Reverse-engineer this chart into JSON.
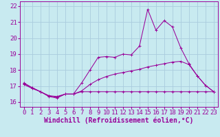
{
  "xlabel": "Windchill (Refroidissement éolien,°C)",
  "bg_color": "#c8eaf0",
  "line_color": "#990099",
  "grid_color": "#aaccdd",
  "xlim": [
    -0.5,
    23.5
  ],
  "ylim": [
    15.7,
    22.3
  ],
  "yticks": [
    16,
    17,
    18,
    19,
    20,
    21,
    22
  ],
  "xticks": [
    0,
    1,
    2,
    3,
    4,
    5,
    6,
    7,
    8,
    9,
    10,
    11,
    12,
    13,
    14,
    15,
    16,
    17,
    18,
    19,
    20,
    21,
    22,
    23
  ],
  "line1_x": [
    0,
    1,
    2,
    3,
    4,
    5,
    6,
    7,
    8,
    9,
    10,
    11,
    12,
    13,
    14,
    15,
    16,
    17,
    18,
    19,
    20,
    21,
    22,
    23
  ],
  "line1_y": [
    17.1,
    16.85,
    16.65,
    16.35,
    16.25,
    16.5,
    16.5,
    16.65,
    16.65,
    16.65,
    16.65,
    16.65,
    16.65,
    16.65,
    16.65,
    16.65,
    16.65,
    16.65,
    16.65,
    16.65,
    16.65,
    16.65,
    16.65,
    16.65
  ],
  "line2_x": [
    0,
    1,
    2,
    3,
    4,
    5,
    6,
    7,
    8,
    9,
    10,
    11,
    12,
    13,
    14,
    15,
    16,
    17,
    18,
    19,
    20,
    21,
    22,
    23
  ],
  "line2_y": [
    17.15,
    16.9,
    16.65,
    16.4,
    16.35,
    16.5,
    16.5,
    16.7,
    17.1,
    17.4,
    17.6,
    17.75,
    17.85,
    17.95,
    18.05,
    18.2,
    18.3,
    18.4,
    18.5,
    18.55,
    18.35,
    17.65,
    17.05,
    16.65
  ],
  "line3_x": [
    0,
    1,
    2,
    3,
    4,
    5,
    6,
    7,
    8,
    9,
    10,
    11,
    12,
    13,
    14,
    15,
    16,
    17,
    18,
    19,
    20,
    21,
    22,
    23
  ],
  "line3_y": [
    17.2,
    16.9,
    16.65,
    16.4,
    16.3,
    16.5,
    16.5,
    17.2,
    18.0,
    18.8,
    18.85,
    18.8,
    19.0,
    18.95,
    19.5,
    21.8,
    20.5,
    21.1,
    20.7,
    19.4,
    18.4,
    17.65,
    17.05,
    16.65
  ],
  "tick_fontsize": 6.5,
  "xlabel_fontsize": 7
}
